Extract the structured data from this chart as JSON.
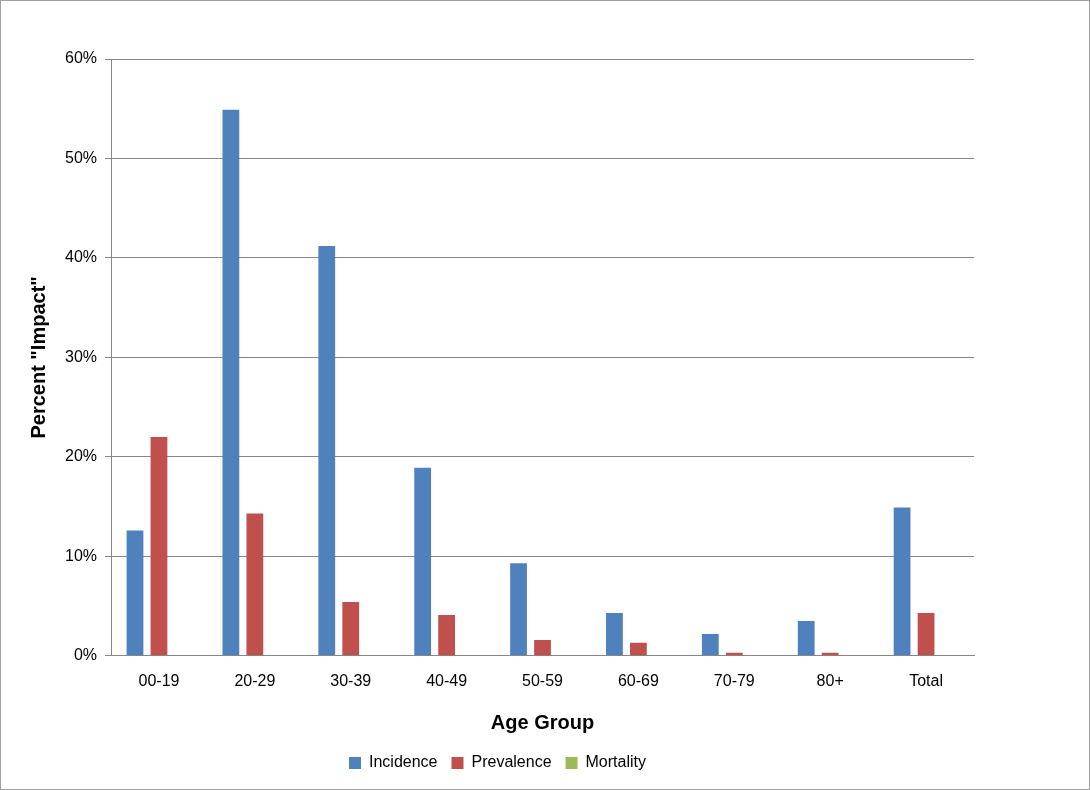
{
  "chart_data": {
    "type": "bar",
    "xlabel": "Age Group",
    "ylabel": "Percent \"Impact\"",
    "categories": [
      "00-19",
      "20-29",
      "30-39",
      "40-49",
      "50-59",
      "60-69",
      "70-79",
      "80+",
      "Total"
    ],
    "series": [
      {
        "name": "Incidence",
        "color": "#4f81bd",
        "values": [
          12.6,
          54.9,
          41.2,
          18.9,
          9.3,
          4.3,
          2.2,
          3.5,
          14.9
        ]
      },
      {
        "name": "Prevalence",
        "color": "#c0504d",
        "values": [
          22.0,
          14.3,
          5.4,
          4.1,
          1.6,
          1.3,
          0.3,
          0.3,
          4.3
        ]
      },
      {
        "name": "Mortality",
        "color": "#9bbb59",
        "values": [
          0,
          0,
          0,
          0,
          0,
          0,
          0,
          0,
          0
        ]
      }
    ],
    "ylim": [
      0,
      60
    ],
    "yticks": [
      {
        "value": 0,
        "label": "0%"
      },
      {
        "value": 10,
        "label": "10%"
      },
      {
        "value": 20,
        "label": "20%"
      },
      {
        "value": 30,
        "label": "30%"
      },
      {
        "value": 40,
        "label": "40%"
      },
      {
        "value": 50,
        "label": "50%"
      },
      {
        "value": 60,
        "label": "60%"
      }
    ],
    "grid": "y",
    "legend": "bottom"
  }
}
